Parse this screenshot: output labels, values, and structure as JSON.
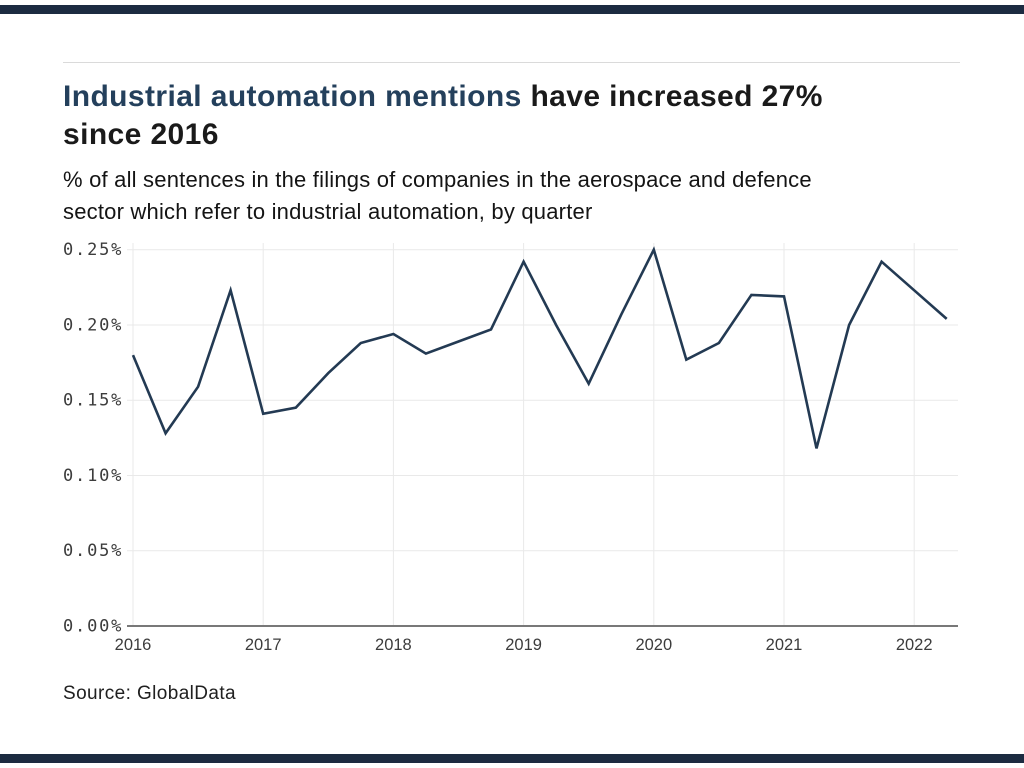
{
  "page": {
    "accent_bar_color": "#1c2b41",
    "background_color": "#ffffff"
  },
  "header": {
    "title_highlight": "Industrial automation mentions",
    "title_rest_line1": " have increased 27%",
    "title_line2": "since 2016",
    "title_highlight_color": "#24405c",
    "title_text_color": "#1a1a1a",
    "subtitle_line1": "% of all sentences in the filings of companies in the aerospace and defence",
    "subtitle_line2": "sector which refer to industrial automation, by quarter"
  },
  "chart_data": {
    "type": "line",
    "title": "Industrial automation mentions have increased 27% since 2016",
    "subtitle": "% of all sentences in the filings of companies in the aerospace and defence sector which refer to industrial automation, by quarter",
    "x": [
      "2016 Q1",
      "2016 Q2",
      "2016 Q3",
      "2016 Q4",
      "2017 Q1",
      "2017 Q2",
      "2017 Q3",
      "2017 Q4",
      "2018 Q1",
      "2018 Q2",
      "2018 Q3",
      "2018 Q4",
      "2019 Q1",
      "2019 Q2",
      "2019 Q3",
      "2019 Q4",
      "2020 Q1",
      "2020 Q2",
      "2020 Q3",
      "2020 Q4",
      "2021 Q1",
      "2021 Q2",
      "2021 Q3",
      "2021 Q4",
      "2022 Q1",
      "2022 Q2"
    ],
    "values": [
      0.18,
      0.128,
      0.159,
      0.223,
      0.141,
      0.145,
      0.168,
      0.188,
      0.194,
      0.181,
      0.189,
      0.197,
      0.242,
      0.2,
      0.161,
      0.207,
      0.25,
      0.177,
      0.188,
      0.22,
      0.219,
      0.118,
      0.2,
      0.242,
      0.223,
      0.204
    ],
    "unit": "%",
    "ylim": [
      0,
      0.25
    ],
    "ytick_step": 0.05,
    "yticks": [
      "0.00%",
      "0.05%",
      "0.10%",
      "0.15%",
      "0.20%",
      "0.25%"
    ],
    "xticks": [
      "2016",
      "2017",
      "2018",
      "2019",
      "2020",
      "2021",
      "2022"
    ],
    "grid": true,
    "legend": false,
    "line_color": "#233a53",
    "gridline_color": "#e9e9e9",
    "axis_color": "#787878",
    "tick_label_color": "#3c3c3c"
  },
  "footer": {
    "source": "Source: GlobalData"
  }
}
